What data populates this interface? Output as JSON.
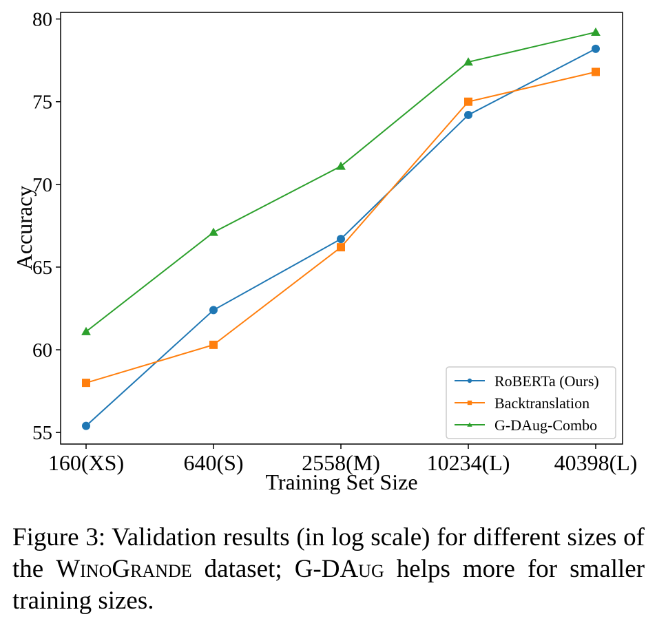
{
  "chart_data": {
    "type": "line",
    "categories": [
      "160(XS)",
      "640(S)",
      "2558(M)",
      "10234(L)",
      "40398(L)"
    ],
    "xlabel": "Training Set Size",
    "ylabel": "Accuracy",
    "ylim": [
      54.3,
      80.4
    ],
    "yticks": [
      55,
      60,
      65,
      70,
      75,
      80
    ],
    "grid": false,
    "legend_position": "bottom-right",
    "series": [
      {
        "name": "RoBERTa (Ours)",
        "color": "#1f77b4",
        "marker": "circle",
        "values": [
          55.4,
          62.4,
          66.7,
          74.2,
          78.2
        ]
      },
      {
        "name": "Backtranslation",
        "color": "#ff7f0e",
        "marker": "square",
        "values": [
          58.0,
          60.3,
          66.2,
          75.0,
          76.8
        ]
      },
      {
        "name": "G-DAug-Combo",
        "color": "#2ca02c",
        "marker": "triangle",
        "values": [
          61.1,
          67.1,
          71.1,
          77.4,
          79.2
        ]
      }
    ]
  },
  "caption": {
    "prefix": "Figure 3: Validation results (in log scale) for different sizes of the ",
    "dataset_name": "WinoGrande",
    "middle": " dataset; ",
    "method_name": "G-DAug",
    "suffix": " helps more for smaller training sizes."
  }
}
